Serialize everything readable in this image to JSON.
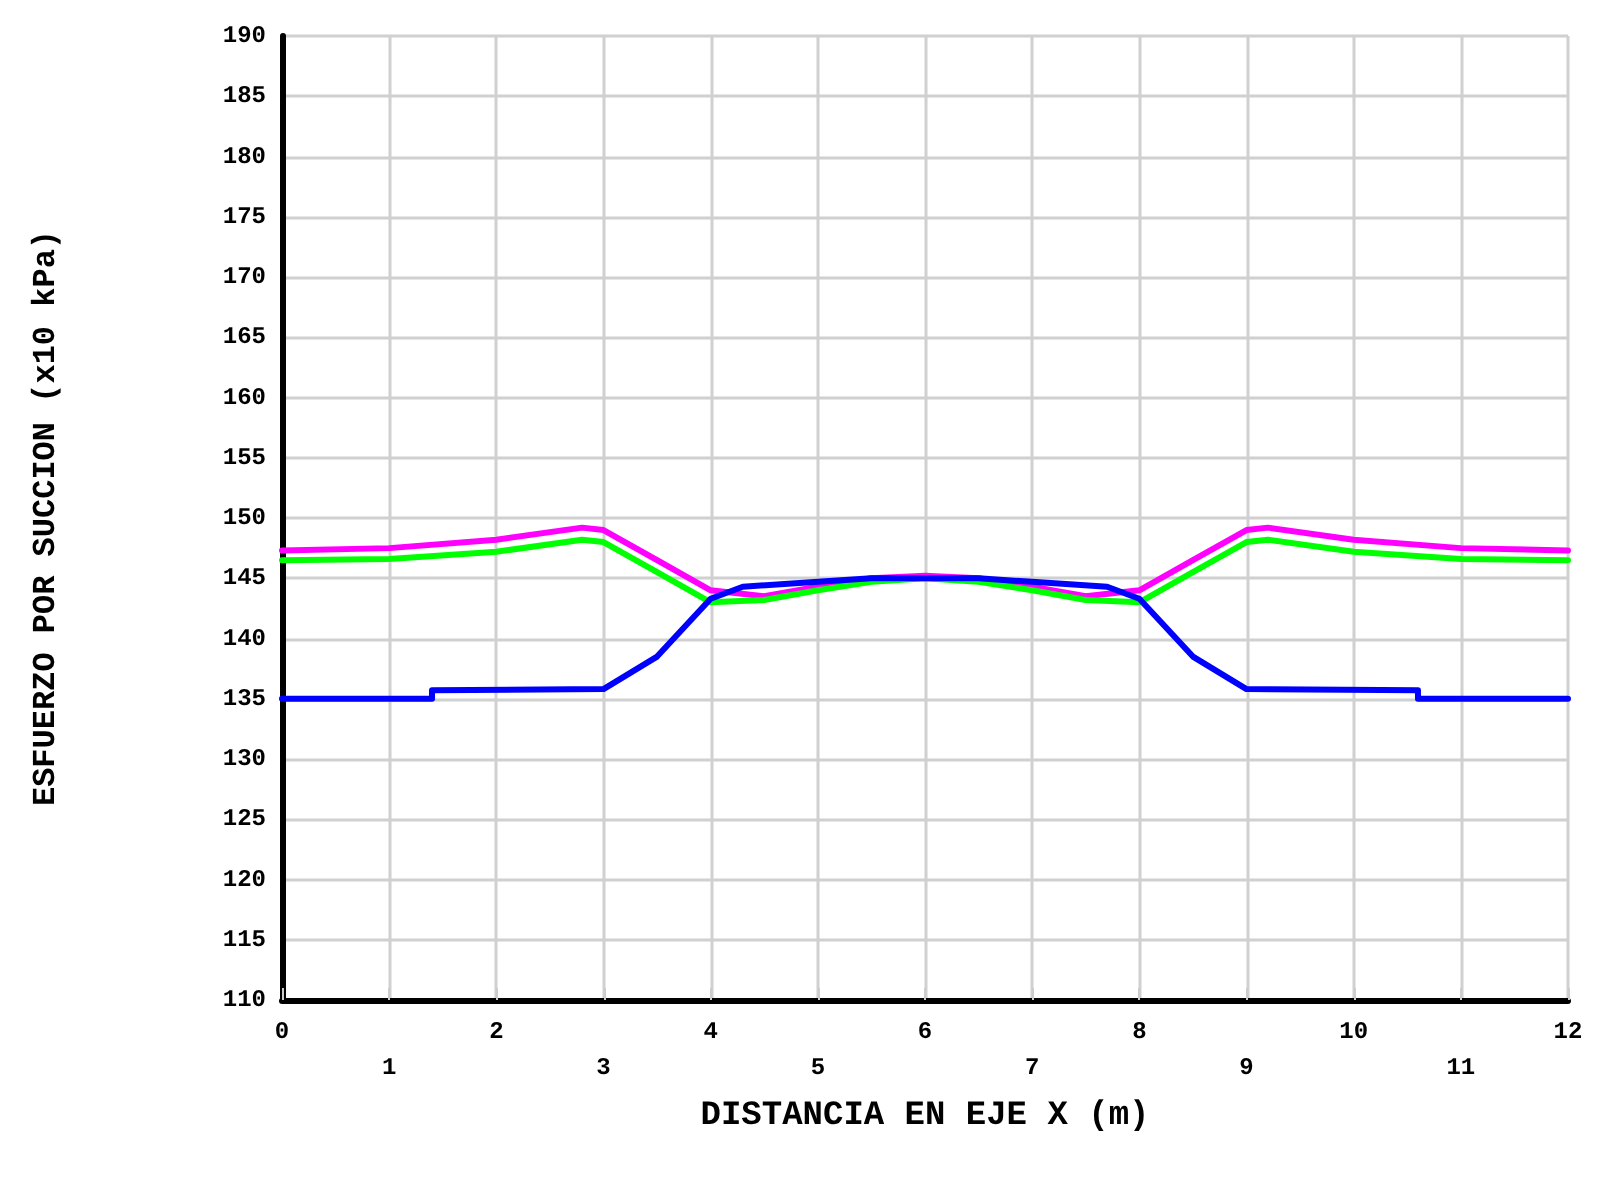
{
  "chart_data": {
    "type": "line",
    "xlabel": "DISTANCIA EN EJE X (m)",
    "ylabel": "ESFUERZO POR SUCCION (x10 kPa)",
    "xlim": [
      0,
      12
    ],
    "xticks": [
      0,
      2,
      4,
      6,
      8,
      10,
      12
    ],
    "x2lim": [
      0,
      12
    ],
    "x2ticks": [
      1,
      3,
      5,
      7,
      9,
      11
    ],
    "ylim": [
      110,
      190
    ],
    "yticks": [
      110,
      115,
      120,
      125,
      130,
      135,
      140,
      145,
      150,
      155,
      160,
      165,
      170,
      175,
      180,
      185,
      190
    ],
    "grid": true,
    "marker": "none",
    "line_style": "solid",
    "series": [
      {
        "color": "#ff00ff",
        "x": [
          0,
          1,
          2,
          2.8,
          3,
          3.5,
          4,
          4.5,
          5,
          5.5,
          6,
          6.5,
          7,
          7.5,
          8,
          8.5,
          9,
          9.2,
          10,
          11,
          12
        ],
        "values": [
          147.3,
          147.5,
          148.2,
          149.2,
          149,
          146.5,
          144,
          143.5,
          144.3,
          145,
          145.2,
          145,
          144.3,
          143.5,
          144,
          146.5,
          149,
          149.2,
          148.2,
          147.5,
          147.3
        ]
      },
      {
        "color": "#00ff00",
        "x": [
          0,
          1,
          2,
          2.8,
          3,
          3.5,
          4,
          4.5,
          5,
          5.5,
          6,
          6.5,
          7,
          7.5,
          8,
          8.5,
          9,
          9.2,
          10,
          11,
          12
        ],
        "values": [
          146.5,
          146.6,
          147.2,
          148.2,
          148,
          145.5,
          143,
          143.2,
          144,
          144.7,
          145,
          144.7,
          144,
          143.2,
          143,
          145.5,
          148,
          148.2,
          147.2,
          146.6,
          146.5
        ]
      },
      {
        "color": "#0000ff",
        "x": [
          0,
          1.4,
          1.4,
          3,
          3.5,
          4,
          4.3,
          5,
          5.5,
          6,
          6.5,
          7,
          7.7,
          8,
          8.5,
          9,
          10.6,
          10.6,
          12
        ],
        "values": [
          135,
          135,
          135.7,
          135.8,
          138.5,
          143.3,
          144.3,
          144.7,
          145,
          145,
          145,
          144.7,
          144.3,
          143.3,
          138.5,
          135.8,
          135.7,
          135,
          135
        ]
      }
    ]
  }
}
